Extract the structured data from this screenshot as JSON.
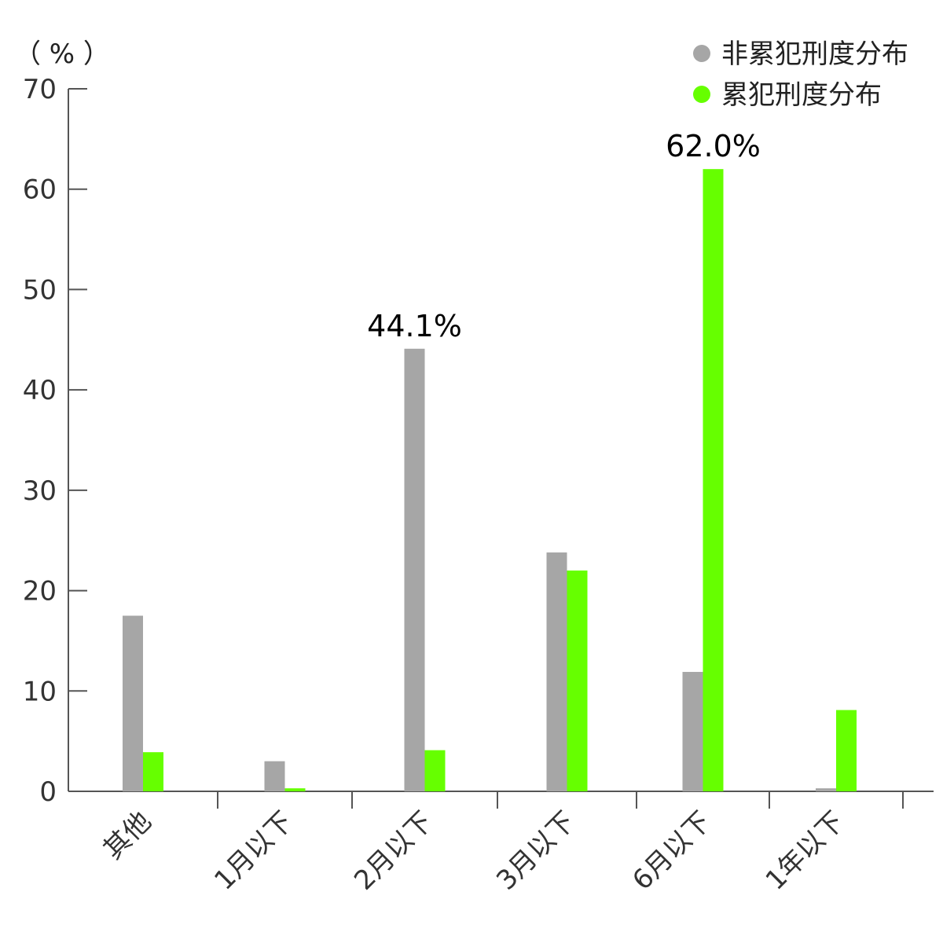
{
  "chart_data": {
    "type": "bar",
    "unit_label": "（ % ）",
    "categories": [
      "其他",
      "1月以下",
      "2月以下",
      "3月以下",
      "6月以下",
      "1年以下"
    ],
    "series": [
      {
        "name": "非累犯刑度分布",
        "color": "#a6a6a6",
        "values": [
          17.5,
          3.0,
          44.1,
          23.8,
          11.9,
          0.3
        ]
      },
      {
        "name": "累犯刑度分布",
        "color": "#66ff00",
        "values": [
          3.9,
          0.3,
          4.1,
          22.0,
          62.0,
          8.1
        ]
      }
    ],
    "ylim": [
      0,
      70
    ],
    "yticks": [
      0,
      10,
      20,
      30,
      40,
      50,
      60,
      70
    ],
    "annotations": [
      {
        "series": 0,
        "category": 2,
        "text": "44.1%"
      },
      {
        "series": 1,
        "category": 4,
        "text": "62.0%"
      }
    ],
    "legend_position": "top-right",
    "grid": false
  }
}
